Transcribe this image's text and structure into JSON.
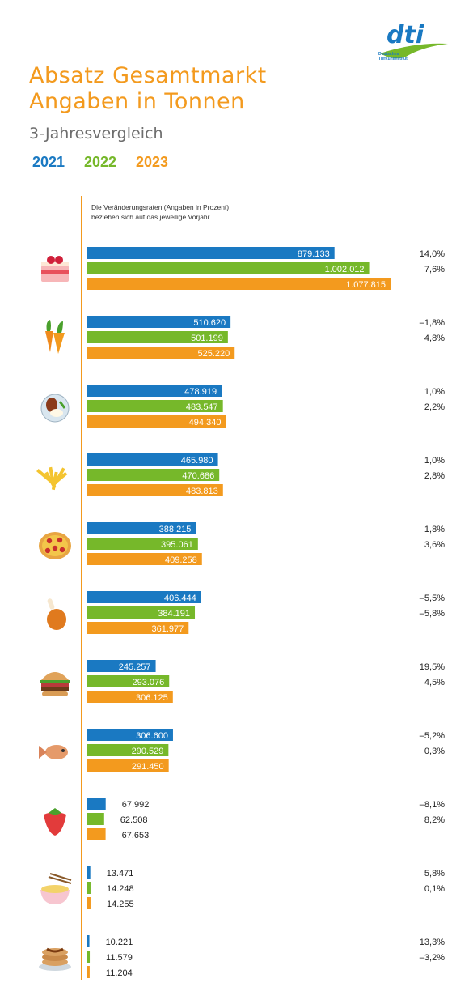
{
  "header": {
    "title_line1": "Absatz Gesamtmarkt",
    "title_line2": "Angaben in Tonnen",
    "subtitle": "3-Jahresvergleich"
  },
  "legend": [
    {
      "label": "2021",
      "color": "#1a79c2"
    },
    {
      "label": "2022",
      "color": "#76b82a"
    },
    {
      "label": "2023",
      "color": "#f39a1e"
    }
  ],
  "note_line1": "Die Veränderungsraten (Angaben in Prozent)",
  "note_line2": "beziehen sich auf das jeweilige Vorjahr.",
  "logo": {
    "text": "dti",
    "line1": "Deutsches",
    "line2": "Tiefkühlinstitut"
  },
  "chart_data": {
    "type": "bar",
    "orientation": "horizontal",
    "categories": [
      "Kuchen/Torten",
      "Gemüse",
      "Fertiggerichte",
      "Kartoffelprodukte",
      "Pizza",
      "Geflügel",
      "Snacks",
      "Fisch",
      "Obst",
      "Nudeln",
      "Backwaren"
    ],
    "category_icons": [
      "cake-icon",
      "carrot-icon",
      "ready-meal-icon",
      "fries-icon",
      "pizza-icon",
      "chicken-leg-icon",
      "burger-icon",
      "fish-icon",
      "strawberry-icon",
      "noodles-icon",
      "pancakes-icon"
    ],
    "series": [
      {
        "name": "2021",
        "color": "#1a79c2",
        "values": [
          879133,
          510620,
          478919,
          465980,
          388215,
          406444,
          245257,
          306600,
          67992,
          13471,
          10221
        ],
        "labels": [
          "879.133",
          "510.620",
          "478.919",
          "465.980",
          "388.215",
          "406.444",
          "245.257",
          "306.600",
          "67.992",
          "13.471",
          "10.221"
        ]
      },
      {
        "name": "2022",
        "color": "#76b82a",
        "values": [
          1002012,
          501199,
          483547,
          470686,
          395061,
          384191,
          293076,
          290529,
          62508,
          14248,
          11579
        ],
        "labels": [
          "1.002.012",
          "501.199",
          "483.547",
          "470.686",
          "395.061",
          "384.191",
          "293.076",
          "290.529",
          "62.508",
          "14.248",
          "11.579"
        ],
        "change": [
          "14,0%",
          "–1,8%",
          "1,0%",
          "1,0%",
          "1,8%",
          "–5,5%",
          "19,5%",
          "–5,2%",
          "–8,1%",
          "5,8%",
          "13,3%"
        ]
      },
      {
        "name": "2023",
        "color": "#f39a1e",
        "values": [
          1077815,
          525220,
          494340,
          483813,
          409258,
          361977,
          306125,
          291450,
          67653,
          14255,
          11204
        ],
        "labels": [
          "1.077.815",
          "525.220",
          "494.340",
          "483.813",
          "409.258",
          "361.977",
          "306.125",
          "291.450",
          "67.653",
          "14.255",
          "11.204"
        ],
        "change": [
          "7,6%",
          "4,8%",
          "2,2%",
          "2,8%",
          "3,6%",
          "–5,8%",
          "4,5%",
          "0,3%",
          "8,2%",
          "0,1%",
          "–3,2%"
        ]
      }
    ],
    "title": "Absatz Gesamtmarkt",
    "ylabel": "Angaben in Tonnen",
    "xlim": [
      0,
      1077815
    ]
  }
}
